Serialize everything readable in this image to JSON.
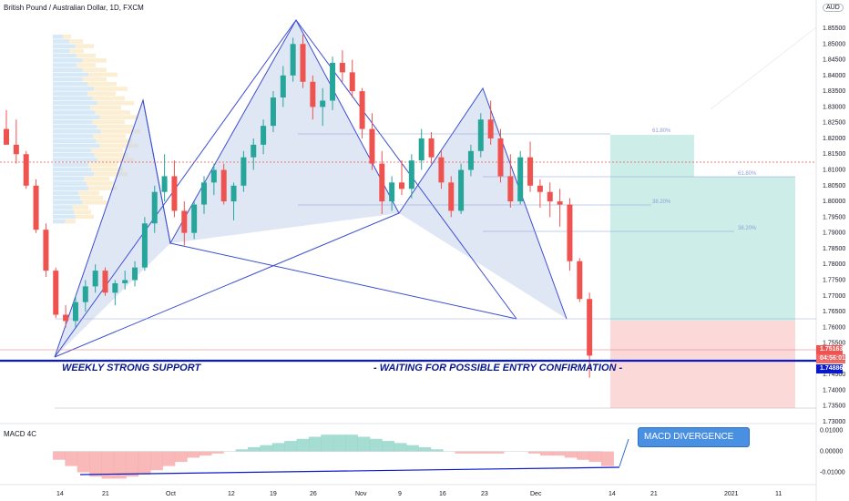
{
  "header": {
    "symbol_title": "British Pound / Australian Dollar, 1D, FXCM",
    "currency": "AUD"
  },
  "macd_panel": {
    "title": "MACD 4C",
    "axis_labels": [
      "0.01000",
      "0.00000",
      "-0.01000"
    ]
  },
  "price_axis": {
    "labels": [
      "1.85500",
      "1.85000",
      "1.84500",
      "1.84000",
      "1.83500",
      "1.83000",
      "1.82500",
      "1.82000",
      "1.81500",
      "1.81000",
      "1.80500",
      "1.80000",
      "1.79500",
      "1.79000",
      "1.78500",
      "1.78000",
      "1.77500",
      "1.77000",
      "1.76500",
      "1.76000",
      "1.75500",
      "1.75000",
      "1.74500",
      "1.74000",
      "1.73500",
      "1.73000"
    ]
  },
  "price_tags": {
    "current_price": "1.75163",
    "countdown": "04:56:01",
    "support_price": "1.74886"
  },
  "time_axis": {
    "labels": [
      "14",
      "21",
      "Oct",
      "12",
      "19",
      "26",
      "Nov",
      "9",
      "16",
      "23",
      "Dec",
      "14",
      "21",
      "2021",
      "11"
    ]
  },
  "annotations": {
    "support_label": "WEEKLY STRONG SUPPORT",
    "entry_label": "- WAITING FOR POSSIBLE ENTRY CONFIRMATION -",
    "macd_callout": "MACD DIVERGENCE"
  },
  "fib_levels": {
    "left_618": "61.80%",
    "left_382": "38.20%",
    "right_618": "61.80%",
    "right_382": "38.20%"
  },
  "colors": {
    "bull": "#26a69a",
    "bear": "#ef5350",
    "pattern_fill": "#c5d3ec",
    "pattern_line": "#3b4ed0",
    "support_line": "#0a1acb",
    "target_zone": "#cdeee8",
    "stop_zone": "#fcd9d9"
  },
  "chart_data": [
    {
      "type": "candlestick",
      "title": "British Pound / Australian Dollar, 1D, FXCM",
      "x_labels": [
        "14",
        "21",
        "Oct",
        "12",
        "19",
        "26",
        "Nov",
        "9",
        "16",
        "23",
        "Dec",
        "14",
        "21",
        "2021",
        "11"
      ],
      "ylim": [
        1.73,
        1.855
      ],
      "candles_ohlc": [
        [
          1.823,
          1.829,
          1.818,
          1.818
        ],
        [
          1.818,
          1.826,
          1.812,
          1.815
        ],
        [
          1.815,
          1.816,
          1.804,
          1.805
        ],
        [
          1.805,
          1.807,
          1.79,
          1.791
        ],
        [
          1.791,
          1.793,
          1.776,
          1.778
        ],
        [
          1.778,
          1.779,
          1.763,
          1.764
        ],
        [
          1.764,
          1.767,
          1.76,
          1.762
        ],
        [
          1.762,
          1.77,
          1.76,
          1.768
        ],
        [
          1.768,
          1.775,
          1.765,
          1.773
        ],
        [
          1.773,
          1.78,
          1.771,
          1.778
        ],
        [
          1.778,
          1.779,
          1.77,
          1.771
        ],
        [
          1.771,
          1.775,
          1.767,
          1.774
        ],
        [
          1.774,
          1.778,
          1.772,
          1.775
        ],
        [
          1.775,
          1.781,
          1.773,
          1.779
        ],
        [
          1.779,
          1.795,
          1.778,
          1.793
        ],
        [
          1.793,
          1.805,
          1.79,
          1.803
        ],
        [
          1.803,
          1.815,
          1.8,
          1.808
        ],
        [
          1.808,
          1.813,
          1.795,
          1.797
        ],
        [
          1.797,
          1.8,
          1.786,
          1.79
        ],
        [
          1.79,
          1.8,
          1.788,
          1.799
        ],
        [
          1.799,
          1.808,
          1.796,
          1.806
        ],
        [
          1.806,
          1.812,
          1.802,
          1.81
        ],
        [
          1.81,
          1.812,
          1.799,
          1.8
        ],
        [
          1.8,
          1.806,
          1.794,
          1.805
        ],
        [
          1.805,
          1.816,
          1.803,
          1.814
        ],
        [
          1.814,
          1.82,
          1.81,
          1.818
        ],
        [
          1.818,
          1.826,
          1.815,
          1.824
        ],
        [
          1.824,
          1.835,
          1.822,
          1.833
        ],
        [
          1.833,
          1.843,
          1.83,
          1.84
        ],
        [
          1.84,
          1.852,
          1.838,
          1.85
        ],
        [
          1.85,
          1.853,
          1.836,
          1.838
        ],
        [
          1.838,
          1.84,
          1.826,
          1.83
        ],
        [
          1.83,
          1.836,
          1.824,
          1.832
        ],
        [
          1.832,
          1.846,
          1.829,
          1.844
        ],
        [
          1.844,
          1.848,
          1.838,
          1.841
        ],
        [
          1.841,
          1.845,
          1.833,
          1.835
        ],
        [
          1.835,
          1.836,
          1.82,
          1.823
        ],
        [
          1.823,
          1.828,
          1.81,
          1.812
        ],
        [
          1.812,
          1.816,
          1.796,
          1.8
        ],
        [
          1.8,
          1.808,
          1.797,
          1.806
        ],
        [
          1.806,
          1.813,
          1.802,
          1.804
        ],
        [
          1.804,
          1.815,
          1.801,
          1.813
        ],
        [
          1.813,
          1.823,
          1.81,
          1.82
        ],
        [
          1.82,
          1.822,
          1.812,
          1.814
        ],
        [
          1.814,
          1.816,
          1.804,
          1.806
        ],
        [
          1.806,
          1.808,
          1.795,
          1.797
        ],
        [
          1.797,
          1.812,
          1.796,
          1.81
        ],
        [
          1.81,
          1.818,
          1.808,
          1.816
        ],
        [
          1.816,
          1.828,
          1.814,
          1.826
        ],
        [
          1.826,
          1.832,
          1.818,
          1.82
        ],
        [
          1.82,
          1.823,
          1.806,
          1.808
        ],
        [
          1.808,
          1.815,
          1.798,
          1.8
        ],
        [
          1.8,
          1.816,
          1.799,
          1.814
        ],
        [
          1.814,
          1.819,
          1.803,
          1.805
        ],
        [
          1.805,
          1.807,
          1.798,
          1.803
        ],
        [
          1.803,
          1.806,
          1.795,
          1.8
        ],
        [
          1.8,
          1.804,
          1.792,
          1.799
        ],
        [
          1.799,
          1.801,
          1.778,
          1.781
        ],
        [
          1.781,
          1.782,
          1.768,
          1.769
        ],
        [
          1.769,
          1.771,
          1.744,
          1.751
        ]
      ]
    },
    {
      "type": "area",
      "title": "MACD 4C",
      "ylim": [
        -0.015,
        0.012
      ],
      "values": [
        -0.004,
        -0.007,
        -0.01,
        -0.012,
        -0.013,
        -0.013,
        -0.012,
        -0.011,
        -0.009,
        -0.007,
        -0.005,
        -0.003,
        -0.002,
        -0.001,
        0.0,
        0.001,
        0.002,
        0.003,
        0.004,
        0.005,
        0.006,
        0.007,
        0.008,
        0.008,
        0.008,
        0.007,
        0.006,
        0.005,
        0.004,
        0.003,
        0.002,
        0.001,
        0.0,
        -0.001,
        -0.001,
        -0.001,
        -0.001,
        0.0,
        0.0,
        -0.001,
        -0.002,
        -0.002,
        -0.003,
        -0.004,
        -0.005,
        -0.007
      ]
    }
  ]
}
